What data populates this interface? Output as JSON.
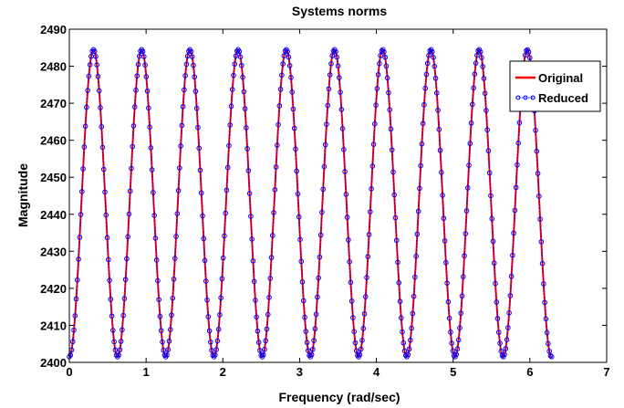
{
  "chart_data": {
    "type": "line",
    "title": "Systems norms",
    "xlabel": "Frequency (rad/sec)",
    "ylabel": "Magnitude",
    "xlim": [
      0,
      7
    ],
    "ylim": [
      2400,
      2490
    ],
    "xticks": [
      0,
      1,
      2,
      3,
      4,
      5,
      6,
      7
    ],
    "yticks": [
      2400,
      2410,
      2420,
      2430,
      2440,
      2450,
      2460,
      2470,
      2480,
      2490
    ],
    "xtick_labels": [
      "0",
      "1",
      "2",
      "3",
      "4",
      "5",
      "6",
      "7"
    ],
    "ytick_labels": [
      "2400",
      "2410",
      "2420",
      "2430",
      "2440",
      "2450",
      "2460",
      "2470",
      "2480",
      "2490"
    ],
    "grid": false,
    "legend_position": "top-right",
    "series": [
      {
        "name": "Original",
        "color": "#ff0000",
        "style": "solid-line",
        "function": "sinusoid",
        "x_range": [
          0,
          6.283
        ],
        "min": 2401.5,
        "max": 2484.5,
        "peaks_x": [
          0.314,
          0.942,
          1.571,
          2.199,
          2.827,
          3.456,
          4.084,
          4.712,
          5.341,
          5.969
        ],
        "troughs_x": [
          0,
          0.628,
          1.257,
          1.885,
          2.513,
          3.142,
          3.77,
          4.398,
          5.027,
          5.655,
          6.283
        ]
      },
      {
        "name": "Reduced",
        "color": "#0000ff",
        "style": "dotted-circle-markers",
        "function": "sinusoid",
        "x_range": [
          0,
          6.283
        ],
        "min": 2401.5,
        "max": 2484.5,
        "peaks_x": [
          0.314,
          0.942,
          1.571,
          2.199,
          2.827,
          3.456,
          4.084,
          4.712,
          5.341,
          5.969
        ],
        "troughs_x": [
          0,
          0.628,
          1.257,
          1.885,
          2.513,
          3.142,
          3.77,
          4.398,
          5.027,
          5.655,
          6.283
        ]
      }
    ]
  }
}
